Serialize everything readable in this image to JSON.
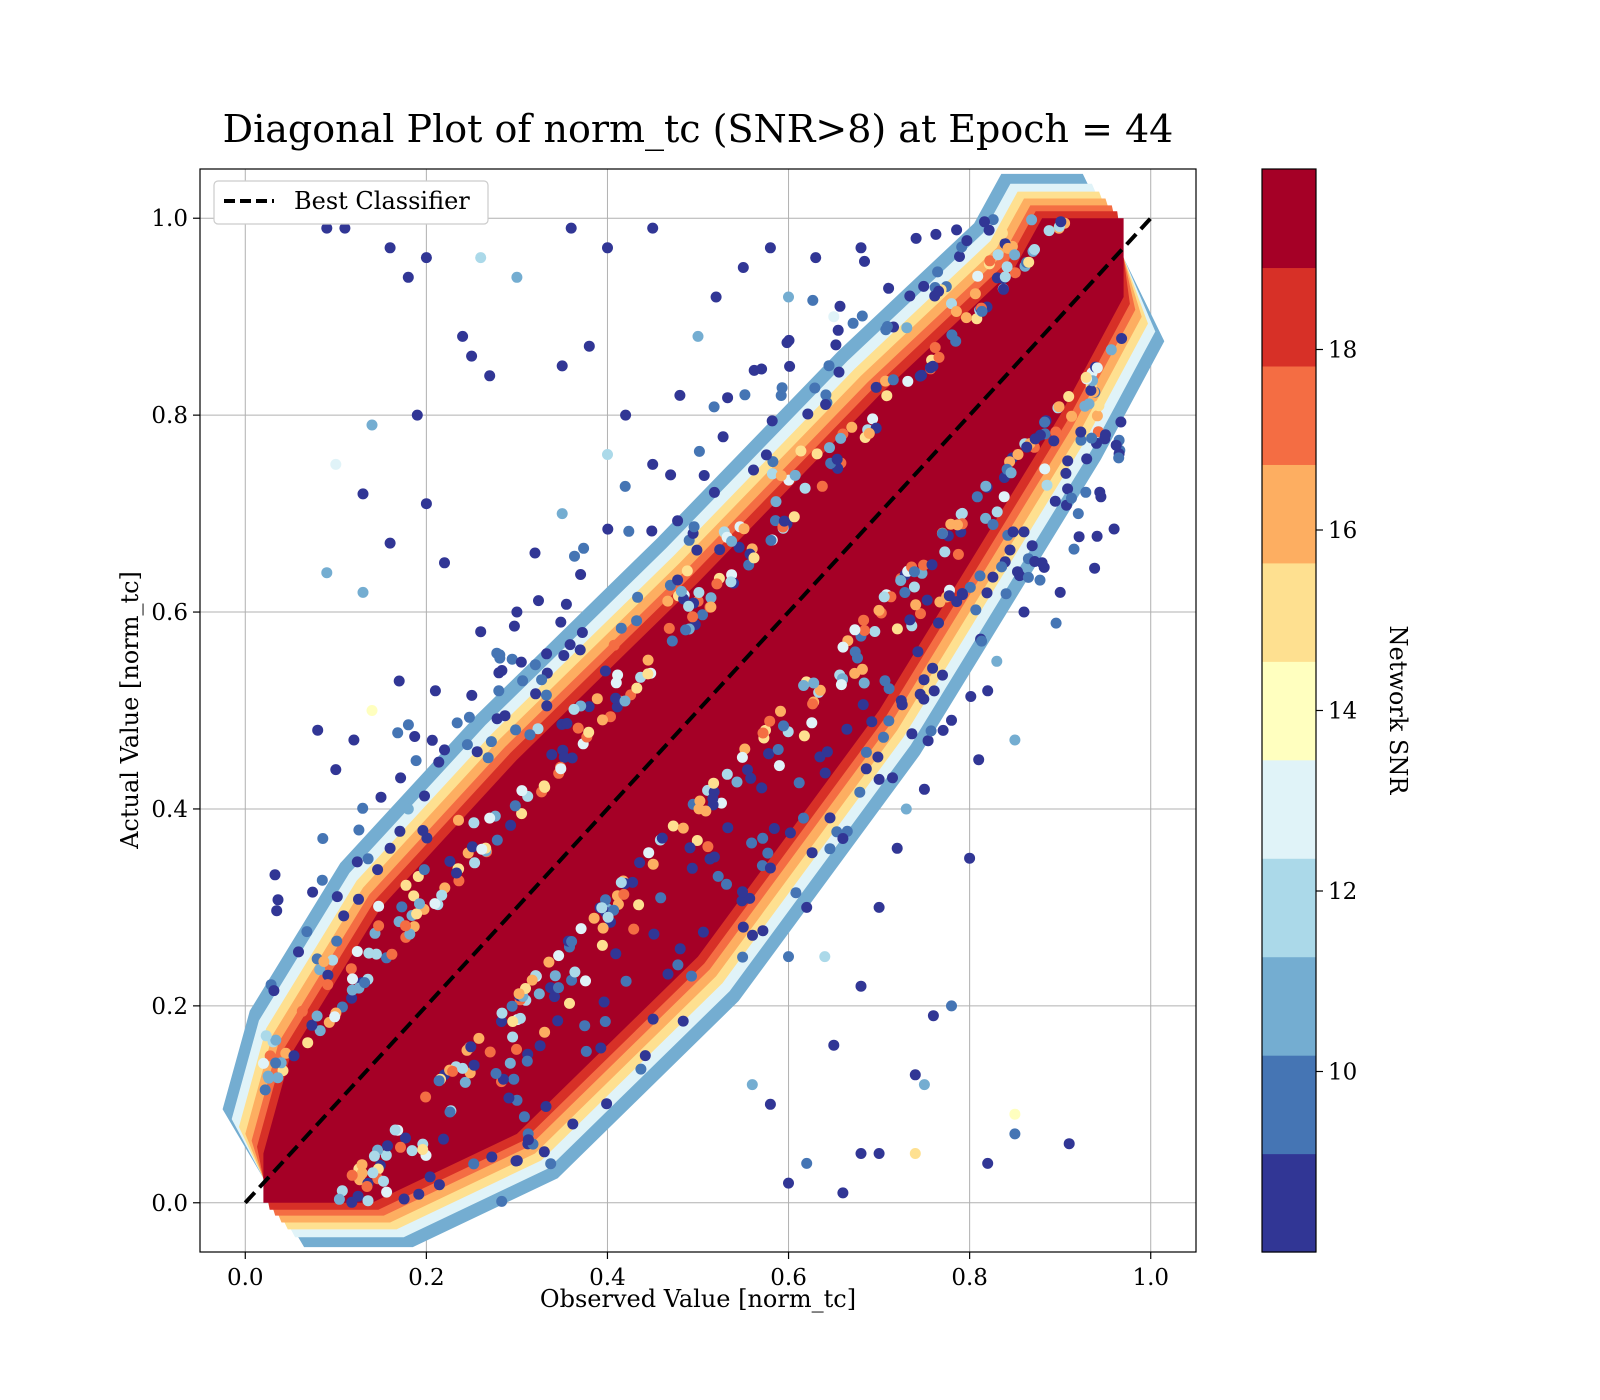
{
  "chart_data": {
    "type": "scatter",
    "title": "Diagonal Plot of norm_tc (SNR>8) at Epoch = 44",
    "xlabel": "Observed Value [norm_tc]",
    "ylabel": "Actual Value [norm_tc]",
    "xlim": [
      -0.05,
      1.05
    ],
    "ylim": [
      -0.05,
      1.05
    ],
    "xticks": [
      "0.0",
      "0.2",
      "0.4",
      "0.6",
      "0.8",
      "1.0"
    ],
    "yticks": [
      "0.0",
      "0.2",
      "0.4",
      "0.6",
      "0.8",
      "1.0"
    ],
    "grid": true,
    "legend": {
      "placement": "top-left",
      "entries": [
        "Best Classifier"
      ]
    },
    "reference_line": {
      "name": "Best Classifier",
      "x": [
        0,
        1
      ],
      "y": [
        0,
        1
      ],
      "style": "dashed",
      "color": "#000000"
    },
    "colorbar": {
      "label": "Network SNR",
      "range": [
        8,
        20
      ],
      "ticks": [
        "10",
        "12",
        "14",
        "16",
        "18"
      ],
      "colors": [
        "#313695",
        "#4575b4",
        "#74add1",
        "#abd9e9",
        "#e0f3f8",
        "#ffffbf",
        "#fee090",
        "#fdae61",
        "#f46d43",
        "#d73027",
        "#a50026"
      ]
    },
    "band": {
      "description_values": "dense high-SNR points along the diagonal",
      "lower_edge": [
        [
          0.02,
          0.0
        ],
        [
          0.14,
          0.0
        ],
        [
          0.3,
          0.07
        ],
        [
          0.5,
          0.25
        ],
        [
          0.7,
          0.5
        ],
        [
          0.9,
          0.8
        ],
        [
          0.97,
          0.92
        ]
      ],
      "upper_edge": [
        [
          0.02,
          0.05
        ],
        [
          0.05,
          0.15
        ],
        [
          0.15,
          0.3
        ],
        [
          0.3,
          0.45
        ],
        [
          0.5,
          0.63
        ],
        [
          0.7,
          0.82
        ],
        [
          0.85,
          0.95
        ],
        [
          0.88,
          1.0
        ],
        [
          0.97,
          1.0
        ]
      ]
    },
    "outlier_points": [
      [
        0.09,
        0.99,
        8.5
      ],
      [
        0.11,
        0.99,
        9.0
      ],
      [
        0.16,
        0.97,
        8.3
      ],
      [
        0.18,
        0.94,
        8.5
      ],
      [
        0.2,
        0.96,
        9.0
      ],
      [
        0.26,
        0.96,
        12.0
      ],
      [
        0.3,
        0.94,
        11.0
      ],
      [
        0.36,
        0.99,
        8.6
      ],
      [
        0.4,
        0.97,
        8.4
      ],
      [
        0.45,
        0.99,
        8.3
      ],
      [
        0.24,
        0.88,
        8.8
      ],
      [
        0.25,
        0.86,
        8.5
      ],
      [
        0.27,
        0.84,
        8.4
      ],
      [
        0.35,
        0.85,
        8.3
      ],
      [
        0.38,
        0.87,
        8.3
      ],
      [
        0.1,
        0.75,
        12.5
      ],
      [
        0.13,
        0.72,
        8.5
      ],
      [
        0.14,
        0.79,
        11.0
      ],
      [
        0.19,
        0.8,
        8.4
      ],
      [
        0.2,
        0.71,
        8.5
      ],
      [
        0.09,
        0.64,
        10.5
      ],
      [
        0.13,
        0.62,
        10.5
      ],
      [
        0.16,
        0.67,
        8.8
      ],
      [
        0.22,
        0.65,
        8.5
      ],
      [
        0.08,
        0.48,
        8.4
      ],
      [
        0.1,
        0.44,
        8.6
      ],
      [
        0.12,
        0.47,
        8.5
      ],
      [
        0.14,
        0.5,
        14.5
      ],
      [
        0.17,
        0.53,
        8.6
      ],
      [
        0.21,
        0.52,
        8.5
      ],
      [
        0.7,
        0.3,
        8.5
      ],
      [
        0.72,
        0.36,
        8.4
      ],
      [
        0.75,
        0.42,
        8.6
      ],
      [
        0.78,
        0.49,
        8.5
      ],
      [
        0.81,
        0.45,
        8.3
      ],
      [
        0.85,
        0.47,
        10.5
      ],
      [
        0.82,
        0.52,
        8.4
      ],
      [
        0.78,
        0.2,
        10.0
      ],
      [
        0.76,
        0.19,
        9.0
      ],
      [
        0.68,
        0.22,
        8.5
      ],
      [
        0.65,
        0.16,
        8.5
      ],
      [
        0.64,
        0.25,
        12.0
      ],
      [
        0.74,
        0.13,
        8.4
      ],
      [
        0.75,
        0.12,
        11.0
      ],
      [
        0.82,
        0.04,
        8.5
      ],
      [
        0.85,
        0.07,
        9.5
      ],
      [
        0.85,
        0.09,
        13.5
      ],
      [
        0.91,
        0.06,
        8.4
      ],
      [
        0.74,
        0.05,
        15.0
      ],
      [
        0.7,
        0.05,
        8.6
      ],
      [
        0.66,
        0.01,
        8.5
      ],
      [
        0.62,
        0.04,
        10.0
      ],
      [
        0.6,
        0.02,
        8.4
      ],
      [
        0.68,
        0.05,
        8.5
      ],
      [
        0.58,
        0.1,
        8.4
      ],
      [
        0.56,
        0.12,
        10.5
      ],
      [
        0.6,
        0.25,
        10.0
      ],
      [
        0.62,
        0.3,
        8.6
      ],
      [
        0.58,
        0.34,
        8.5
      ],
      [
        0.55,
        0.28,
        8.4
      ],
      [
        0.3,
        0.6,
        8.4
      ],
      [
        0.32,
        0.66,
        8.5
      ],
      [
        0.35,
        0.7,
        10.5
      ],
      [
        0.4,
        0.76,
        12.0
      ],
      [
        0.42,
        0.8,
        8.4
      ],
      [
        0.45,
        0.75,
        8.6
      ],
      [
        0.48,
        0.82,
        8.5
      ],
      [
        0.5,
        0.88,
        10.5
      ],
      [
        0.52,
        0.92,
        8.3
      ],
      [
        0.55,
        0.95,
        8.5
      ],
      [
        0.58,
        0.97,
        8.4
      ],
      [
        0.6,
        0.92,
        11.0
      ],
      [
        0.63,
        0.96,
        8.5
      ],
      [
        0.65,
        0.9,
        12.5
      ],
      [
        0.68,
        0.97,
        8.4
      ],
      [
        0.26,
        0.58,
        8.5
      ],
      [
        0.28,
        0.52,
        10.0
      ],
      [
        0.22,
        0.46,
        8.4
      ],
      [
        0.18,
        0.4,
        11.0
      ],
      [
        0.16,
        0.36,
        8.5
      ],
      [
        0.86,
        0.6,
        8.4
      ],
      [
        0.88,
        0.65,
        8.5
      ],
      [
        0.9,
        0.62,
        8.3
      ],
      [
        0.92,
        0.7,
        10.0
      ],
      [
        0.95,
        0.78,
        8.4
      ],
      [
        0.83,
        0.55,
        11.0
      ],
      [
        0.8,
        0.35,
        8.5
      ],
      [
        0.73,
        0.4,
        10.5
      ],
      [
        0.7,
        0.43,
        8.6
      ],
      [
        0.66,
        0.37,
        8.4
      ]
    ]
  }
}
